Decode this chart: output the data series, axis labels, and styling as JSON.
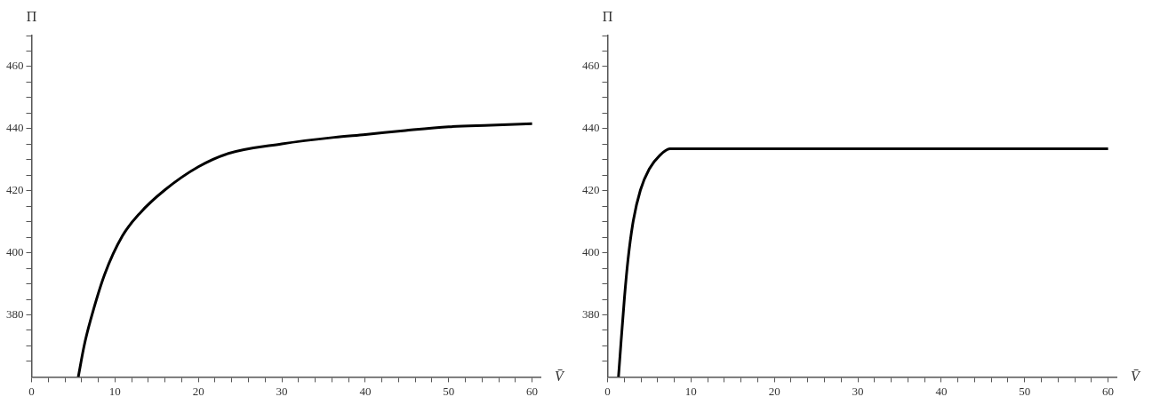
{
  "chart_data": [
    {
      "type": "line",
      "xlabel": "V̄",
      "ylabel": "Π",
      "xlim": [
        0,
        61
      ],
      "ylim": [
        360,
        470
      ],
      "xticks": [
        0,
        {
          "value": 2,
          "label": null
        },
        {
          "value": 4,
          "label": null
        },
        {
          "value": 6,
          "label": null
        },
        {
          "value": 8,
          "label": null
        },
        10,
        {
          "value": 12,
          "label": null
        },
        {
          "value": 14,
          "label": null
        },
        {
          "value": 16,
          "label": null
        },
        {
          "value": 18,
          "label": null
        },
        20,
        {
          "value": 22,
          "label": null
        },
        {
          "value": 24,
          "label": null
        },
        {
          "value": 26,
          "label": null
        },
        {
          "value": 28,
          "label": null
        },
        30,
        {
          "value": 32,
          "label": null
        },
        {
          "value": 34,
          "label": null
        },
        {
          "value": 36,
          "label": null
        },
        {
          "value": 38,
          "label": null
        },
        40,
        {
          "value": 42,
          "label": null
        },
        {
          "value": 44,
          "label": null
        },
        {
          "value": 46,
          "label": null
        },
        {
          "value": 48,
          "label": null
        },
        50,
        {
          "value": 52,
          "label": null
        },
        {
          "value": 54,
          "label": null
        },
        {
          "value": 56,
          "label": null
        },
        {
          "value": 58,
          "label": null
        },
        60
      ],
      "yticks": [
        {
          "value": 365,
          "label": null
        },
        {
          "value": 370,
          "label": null
        },
        {
          "value": 375,
          "label": null
        },
        380,
        {
          "value": 385,
          "label": null
        },
        {
          "value": 390,
          "label": null
        },
        {
          "value": 395,
          "label": null
        },
        400,
        {
          "value": 405,
          "label": null
        },
        {
          "value": 410,
          "label": null
        },
        {
          "value": 415,
          "label": null
        },
        420,
        {
          "value": 425,
          "label": null
        },
        {
          "value": 430,
          "label": null
        },
        {
          "value": 435,
          "label": null
        },
        440,
        {
          "value": 445,
          "label": null
        },
        {
          "value": 450,
          "label": null
        },
        {
          "value": 455,
          "label": null
        },
        460,
        {
          "value": 465,
          "label": null
        },
        {
          "value": 470,
          "label": null
        }
      ],
      "grid": false,
      "legend": false,
      "marker": "none",
      "line_style": "solid",
      "series": [
        {
          "color": "#000000",
          "x": [
            5.6,
            6.3,
            7.07,
            8.77,
            10.88,
            13.0,
            15.96,
            20.0,
            23.6,
            30.0,
            36.3,
            40.0,
            44.8,
            50.0,
            55.0,
            60.0
          ],
          "values": [
            360,
            370,
            378.3,
            393.1,
            405.4,
            412.8,
            420.2,
            427.7,
            432.0,
            435.1,
            437.2,
            438.1,
            439.4,
            440.6,
            441.1,
            441.6
          ]
        }
      ]
    },
    {
      "type": "line",
      "xlabel": "V̄",
      "ylabel": "Π",
      "xlim": [
        0,
        61
      ],
      "ylim": [
        360,
        470
      ],
      "xticks": [
        0,
        {
          "value": 2,
          "label": null
        },
        {
          "value": 4,
          "label": null
        },
        {
          "value": 6,
          "label": null
        },
        {
          "value": 8,
          "label": null
        },
        10,
        {
          "value": 12,
          "label": null
        },
        {
          "value": 14,
          "label": null
        },
        {
          "value": 16,
          "label": null
        },
        {
          "value": 18,
          "label": null
        },
        20,
        {
          "value": 22,
          "label": null
        },
        {
          "value": 24,
          "label": null
        },
        {
          "value": 26,
          "label": null
        },
        {
          "value": 28,
          "label": null
        },
        30,
        {
          "value": 32,
          "label": null
        },
        {
          "value": 34,
          "label": null
        },
        {
          "value": 36,
          "label": null
        },
        {
          "value": 38,
          "label": null
        },
        40,
        {
          "value": 42,
          "label": null
        },
        {
          "value": 44,
          "label": null
        },
        {
          "value": 46,
          "label": null
        },
        {
          "value": 48,
          "label": null
        },
        50,
        {
          "value": 52,
          "label": null
        },
        {
          "value": 54,
          "label": null
        },
        {
          "value": 56,
          "label": null
        },
        {
          "value": 58,
          "label": null
        },
        60
      ],
      "yticks": [
        {
          "value": 365,
          "label": null
        },
        {
          "value": 370,
          "label": null
        },
        {
          "value": 375,
          "label": null
        },
        380,
        {
          "value": 385,
          "label": null
        },
        {
          "value": 390,
          "label": null
        },
        {
          "value": 395,
          "label": null
        },
        400,
        {
          "value": 405,
          "label": null
        },
        {
          "value": 410,
          "label": null
        },
        {
          "value": 415,
          "label": null
        },
        420,
        {
          "value": 425,
          "label": null
        },
        {
          "value": 430,
          "label": null
        },
        {
          "value": 435,
          "label": null
        },
        440,
        {
          "value": 445,
          "label": null
        },
        {
          "value": 450,
          "label": null
        },
        {
          "value": 455,
          "label": null
        },
        460,
        {
          "value": 465,
          "label": null
        },
        {
          "value": 470,
          "label": null
        }
      ],
      "grid": false,
      "legend": false,
      "marker": "none",
      "line_style": "solid",
      "series": [
        {
          "color": "#000000",
          "x": [
            1.31,
            1.61,
            2.03,
            2.46,
            3.09,
            3.94,
            5.0,
            6.27,
            7.46,
            20,
            40,
            60
          ],
          "values": [
            360,
            371.0,
            385.7,
            398.0,
            410.4,
            420.2,
            427.0,
            431.4,
            433.5,
            433.5,
            433.5,
            433.5
          ]
        }
      ]
    }
  ]
}
